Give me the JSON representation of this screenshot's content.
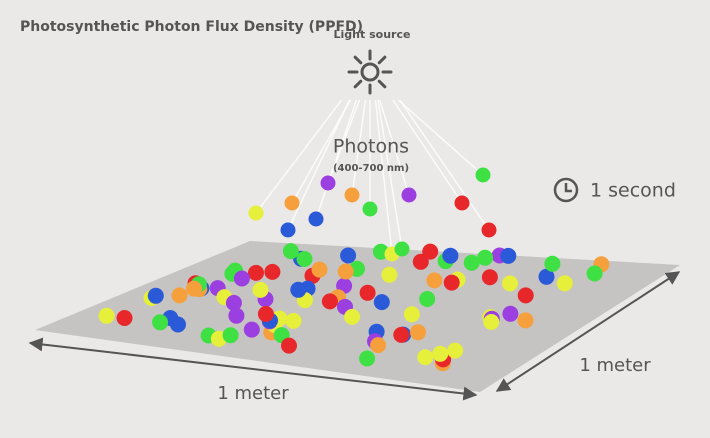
{
  "title": "Photosynthetic Photon Flux Density (PPFD)",
  "light_source": "Light source",
  "photons": {
    "label": "Photons",
    "range": "(400-700 nm)"
  },
  "time": "1 second",
  "dimensions": {
    "length": "1 meter",
    "width": "1 meter"
  }
}
